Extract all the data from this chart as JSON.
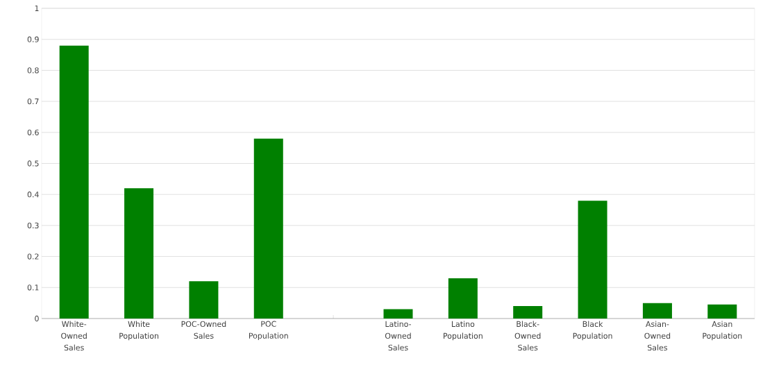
{
  "chart_data": {
    "type": "bar",
    "categories": [
      "White-Owned Sales",
      "White Population",
      "POC-Owned Sales",
      "POC Population",
      null,
      "Latino-Owned Sales",
      "Latino Population",
      "Black-Owned Sales",
      "Black Population",
      "Asian-Owned Sales",
      "Asian Population"
    ],
    "values": [
      0.88,
      0.42,
      0.12,
      0.58,
      null,
      0.03,
      0.13,
      0.04,
      0.38,
      0.05,
      0.045
    ],
    "color": "#008000",
    "ylim": [
      0,
      1
    ],
    "yticks": [
      0,
      0.1,
      0.2,
      0.3,
      0.4,
      0.5,
      0.6,
      0.7,
      0.8,
      0.9,
      1
    ],
    "grid": "y"
  }
}
